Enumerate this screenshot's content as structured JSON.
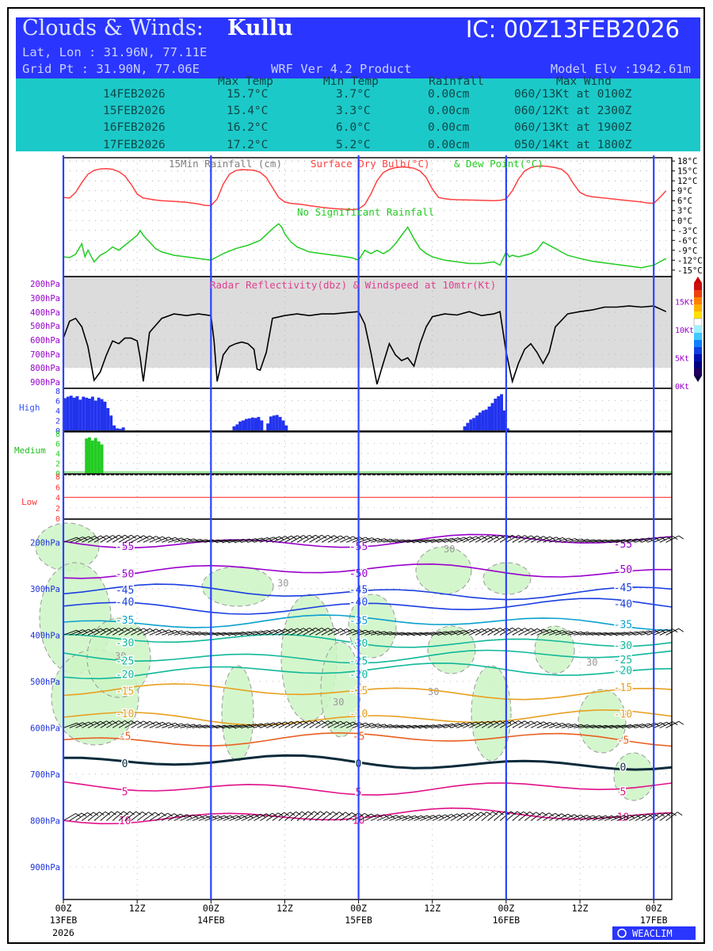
{
  "header": {
    "title_prefix": "Clouds & Winds:",
    "title_location": "Kullu",
    "ic": "IC: 00Z13FEB2026",
    "latlon": "Lat, Lon : 31.96N, 77.11E",
    "gridpt": "Grid Pt  : 31.90N, 77.06E",
    "product": "WRF Ver 4.2 Product",
    "elevation": "Model Elv :1942.61m"
  },
  "summary": {
    "columns": [
      "Max Temp",
      "Min Temp",
      "Rainfall",
      "Max Wind"
    ],
    "rows": [
      {
        "date": "14FEB2026",
        "max_temp": "15.7°C",
        "min_temp": "3.7°C",
        "rainfall": "0.00cm",
        "max_wind": "060/13Kt at 0100Z"
      },
      {
        "date": "15FEB2026",
        "max_temp": "15.4°C",
        "min_temp": "3.3°C",
        "rainfall": "0.00cm",
        "max_wind": "060/12Kt at 2300Z"
      },
      {
        "date": "16FEB2026",
        "max_temp": "16.2°C",
        "min_temp": "6.0°C",
        "rainfall": "0.00cm",
        "max_wind": "060/13Kt at 1900Z"
      },
      {
        "date": "17FEB2026",
        "max_temp": "17.2°C",
        "min_temp": "5.2°C",
        "rainfall": "0.00cm",
        "max_wind": "050/14Kt at 1800Z"
      }
    ]
  },
  "colors": {
    "header_blue": "#2a35ff",
    "header_cyan": "#1cc9c9",
    "day_line": "#2b44ff",
    "dry_bulb": "#ff4040",
    "dew_point": "#22cc22",
    "windspeed": "#000000",
    "high_cloud": "#2233ee",
    "medium_cloud": "#22cc22",
    "low_cloud": "#ff3333",
    "radar_bg": "#dcdcdc",
    "label_purple": "#9900cc"
  },
  "chart_data": [
    {
      "type": "line",
      "panel": "temperature",
      "title": "15Min Rainfall (cm)    Surface Dry Bulb(°C)    & Dew Point(°C)",
      "title_parts": [
        "15Min Rainfall (cm)",
        "Surface Dry Bulb(°C)",
        "& Dew Point(°C)"
      ],
      "annotation": "No Significant Rainfall",
      "x_unit": "hours since 00Z13FEB2026",
      "y_ticks": [
        "18°C",
        "15°C",
        "12°C",
        "9°C",
        "6°C",
        "3°C",
        "0°C",
        "-3°C",
        "-6°C",
        "-9°C",
        "-12°C",
        "-15°C"
      ],
      "y_tick_values": [
        18,
        15,
        12,
        9,
        6,
        3,
        0,
        -3,
        -6,
        -9,
        -12,
        -15
      ],
      "ylim": [
        -16,
        19
      ],
      "series": [
        {
          "name": "Surface Dry Bulb(°C)",
          "x": [
            0,
            1,
            2,
            3,
            4,
            5,
            6,
            7,
            8,
            9,
            10,
            11,
            12,
            13,
            14,
            15,
            16,
            18,
            20,
            22,
            23,
            24,
            25,
            26,
            27,
            28,
            29,
            30,
            31,
            32,
            33,
            34,
            35,
            36,
            37,
            38,
            39,
            40,
            42,
            44,
            46,
            47,
            48,
            49,
            50,
            51,
            52,
            53,
            54,
            55,
            56,
            57,
            58,
            59,
            60,
            61,
            62,
            63,
            64,
            66,
            68,
            70,
            71,
            72,
            73,
            74,
            75,
            76,
            77,
            78,
            79,
            80,
            81,
            82,
            83,
            84,
            85,
            86,
            87,
            88,
            90,
            92,
            94,
            95,
            96,
            97,
            98
          ],
          "values": [
            7.0,
            6.8,
            8.5,
            11.5,
            14.0,
            15.2,
            15.6,
            15.7,
            15.5,
            14.8,
            13.5,
            11.0,
            8.0,
            6.8,
            6.5,
            6.2,
            6.0,
            5.8,
            5.5,
            5.0,
            4.6,
            4.5,
            6.5,
            11.0,
            14.0,
            15.1,
            15.4,
            15.3,
            15.2,
            14.6,
            13.0,
            10.0,
            7.0,
            5.6,
            5.2,
            5.0,
            4.8,
            4.5,
            4.0,
            3.6,
            3.4,
            3.3,
            3.5,
            4.8,
            8.0,
            12.0,
            14.5,
            15.5,
            16.0,
            16.2,
            16.1,
            15.8,
            15.0,
            13.0,
            9.5,
            7.0,
            6.6,
            6.4,
            6.3,
            6.2,
            6.1,
            6.0,
            6.1,
            6.5,
            9.0,
            12.5,
            15.0,
            16.0,
            16.4,
            16.5,
            16.3,
            16.0,
            15.5,
            14.0,
            11.0,
            8.5,
            7.6,
            7.2,
            7.0,
            6.8,
            6.4,
            6.0,
            5.6,
            5.3,
            5.2,
            7.0,
            9.0
          ]
        },
        {
          "name": "Dew Point(°C)",
          "x": [
            0,
            1,
            2,
            3,
            3.5,
            4,
            5,
            6,
            7,
            8,
            9,
            10,
            11,
            12,
            12.5,
            13,
            14,
            15,
            16,
            18,
            20,
            22,
            24,
            25,
            26,
            28,
            30,
            32,
            34,
            35,
            35.5,
            36,
            37,
            38,
            40,
            42,
            44,
            46,
            47,
            48,
            49,
            50,
            51,
            52,
            53,
            54,
            55,
            56,
            57,
            58,
            59,
            60,
            62,
            64,
            66,
            68,
            70,
            71,
            72,
            72.5,
            73,
            74,
            75,
            76,
            77,
            78,
            80,
            82,
            84,
            86,
            88,
            90,
            92,
            94,
            96,
            98
          ],
          "values": [
            -11.0,
            -11.2,
            -10.2,
            -7.0,
            -11.0,
            -9.0,
            -12.5,
            -10.5,
            -9.5,
            -8.0,
            -9.0,
            -7.5,
            -6.0,
            -4.5,
            -3.0,
            -4.5,
            -6.5,
            -8.5,
            -9.5,
            -10.5,
            -11.0,
            -11.5,
            -12.0,
            -11.0,
            -10.0,
            -8.5,
            -7.5,
            -6.0,
            -2.5,
            -1.0,
            -2.0,
            -4.0,
            -6.5,
            -8.0,
            -9.5,
            -10.0,
            -10.5,
            -11.0,
            -11.3,
            -12.0,
            -9.0,
            -10.0,
            -9.0,
            -10.0,
            -9.0,
            -7.0,
            -4.5,
            -2.0,
            -5.5,
            -8.5,
            -10.0,
            -11.0,
            -12.0,
            -12.5,
            -13.0,
            -13.0,
            -12.5,
            -13.5,
            -9.5,
            -11.0,
            -10.5,
            -11.0,
            -10.5,
            -10.0,
            -9.0,
            -6.5,
            -8.5,
            -10.5,
            -11.5,
            -12.3,
            -12.8,
            -13.3,
            -13.8,
            -14.3,
            -13.5,
            -11.5
          ]
        }
      ]
    },
    {
      "type": "line",
      "panel": "radar_and_windspeed",
      "title": "Radar Reflectivity(dbz) & Windspeed at 10mtr(Kt)",
      "left_ticks": [
        "200hPa",
        "300hPa",
        "400hPa",
        "500hPa",
        "600hPa",
        "700hPa",
        "800hPa",
        "900hPa"
      ],
      "right_ticks": [
        "15Kt",
        "10Kt",
        "5Kt",
        "0Kt"
      ],
      "right_tick_values": [
        15,
        10,
        5,
        0
      ],
      "ylim": [
        0,
        19
      ],
      "series": [
        {
          "name": "Windspeed at 10mtr(Kt)",
          "x": [
            0,
            1,
            2,
            3,
            4,
            4.5,
            5,
            6,
            7,
            8,
            9,
            10,
            11,
            12,
            12.5,
            13,
            14,
            16,
            18,
            20,
            22,
            24,
            24.5,
            25,
            26,
            27,
            28,
            29,
            30,
            31,
            31.5,
            32,
            33,
            34,
            36,
            38,
            40,
            42,
            44,
            46,
            48,
            49,
            50,
            51,
            52,
            53,
            54,
            55,
            56,
            57,
            58,
            59,
            60,
            62,
            64,
            66,
            68,
            70,
            71,
            72,
            73,
            74,
            75,
            76,
            77,
            78,
            79,
            80,
            82,
            84,
            86,
            88,
            90,
            92,
            94,
            96,
            98
          ],
          "values": [
            8.5,
            11.5,
            12.0,
            10.5,
            7.0,
            4.0,
            1.0,
            2.5,
            5.5,
            8.0,
            7.5,
            8.5,
            8.5,
            8.0,
            5.0,
            0.8,
            9.5,
            12.0,
            12.8,
            12.5,
            12.8,
            12.5,
            8.0,
            0.8,
            5.5,
            7.0,
            7.5,
            7.8,
            7.5,
            6.5,
            3.0,
            2.8,
            6.0,
            12.0,
            12.5,
            12.8,
            12.5,
            12.8,
            12.8,
            13.0,
            13.2,
            11.0,
            6.0,
            0.3,
            4.0,
            7.5,
            5.5,
            4.5,
            5.0,
            3.5,
            7.5,
            10.5,
            12.3,
            12.8,
            12.6,
            13.2,
            12.5,
            12.8,
            13.2,
            6.0,
            0.8,
            4.0,
            6.5,
            7.5,
            6.0,
            4.0,
            6.0,
            10.5,
            12.8,
            13.2,
            13.5,
            14.0,
            14.0,
            14.2,
            14.0,
            14.2,
            13.2
          ]
        }
      ]
    },
    {
      "type": "area",
      "panel": "cloud_fraction",
      "x_unit": "hours since 00Z13FEB2026",
      "y_ticks": [
        "8",
        "6",
        "4",
        "2",
        "0"
      ],
      "ylim": [
        0,
        8
      ],
      "series": [
        {
          "name": "High",
          "x": [
            0,
            0.5,
            1,
            1.5,
            2,
            2.5,
            3,
            3.5,
            4,
            4.5,
            5,
            5.5,
            6,
            6.5,
            7,
            7.5,
            8,
            8.5,
            9,
            9.5,
            27.5,
            28,
            28.5,
            29,
            29.5,
            30,
            30.5,
            31,
            31.5,
            32,
            33,
            33.5,
            34,
            34.5,
            35,
            35.5,
            36,
            65,
            65.5,
            66,
            66.5,
            67,
            67.5,
            68,
            68.5,
            69,
            69.5,
            70,
            70.5,
            71,
            71.5,
            72
          ],
          "values": [
            6.5,
            6.8,
            7.0,
            6.6,
            6.9,
            6.2,
            6.8,
            6.6,
            6.4,
            6.8,
            6.0,
            6.6,
            6.3,
            5.8,
            4.5,
            3.0,
            1.0,
            0.4,
            0.3,
            0.6,
            0.8,
            1.2,
            1.8,
            2.0,
            2.3,
            2.4,
            2.6,
            2.5,
            2.7,
            2.0,
            1.4,
            2.8,
            3.0,
            3.1,
            2.7,
            2.0,
            1.0,
            0.8,
            1.5,
            2.2,
            2.5,
            3.0,
            3.6,
            4.0,
            4.2,
            4.8,
            5.5,
            6.4,
            6.9,
            7.3,
            4.0,
            0.4
          ]
        },
        {
          "name": "Medium",
          "x": [
            3.5,
            4,
            4.5,
            5,
            5.5,
            6
          ],
          "values": [
            7.0,
            7.2,
            6.6,
            7.1,
            6.4,
            5.8
          ]
        },
        {
          "name": "Low",
          "x": [],
          "values": []
        }
      ]
    },
    {
      "type": "line",
      "panel": "upper_air",
      "title": "",
      "left_ticks": [
        "200hPa",
        "300hPa",
        "400hPa",
        "500hPa",
        "600hPa",
        "700hPa",
        "800hPa",
        "900hPa"
      ],
      "left_tick_values": [
        200,
        300,
        400,
        500,
        600,
        700,
        800,
        900
      ],
      "ylim": [
        970,
        150
      ],
      "x_ticks": [
        "00Z",
        "12Z",
        "00Z",
        "12Z",
        "00Z",
        "12Z",
        "00Z",
        "12Z",
        "00Z"
      ],
      "day_labels": [
        "13FEB",
        "14FEB",
        "15FEB",
        "16FEB",
        "17FEB"
      ],
      "year_label": "2026",
      "rh_contour_label": "30",
      "isotherms": [
        {
          "label": "-55",
          "level": 198
        },
        {
          "label": "-50",
          "level": 262
        },
        {
          "label": "-45",
          "level": 307
        },
        {
          "label": "-40",
          "level": 338
        },
        {
          "label": "-35",
          "level": 373
        },
        {
          "label": "-30",
          "level": 412
        },
        {
          "label": "-25",
          "level": 445
        },
        {
          "label": "-20",
          "level": 477
        },
        {
          "label": "-15",
          "level": 522
        },
        {
          "label": "-10",
          "level": 578
        },
        {
          "label": "-5",
          "level": 625
        },
        {
          "label": "0",
          "level": 675
        },
        {
          "label": "5",
          "level": 728
        },
        {
          "label": "10",
          "level": 790
        }
      ],
      "wind_barb_levels": [
        200,
        400,
        600,
        800
      ]
    }
  ],
  "branding": "WEACLIM"
}
